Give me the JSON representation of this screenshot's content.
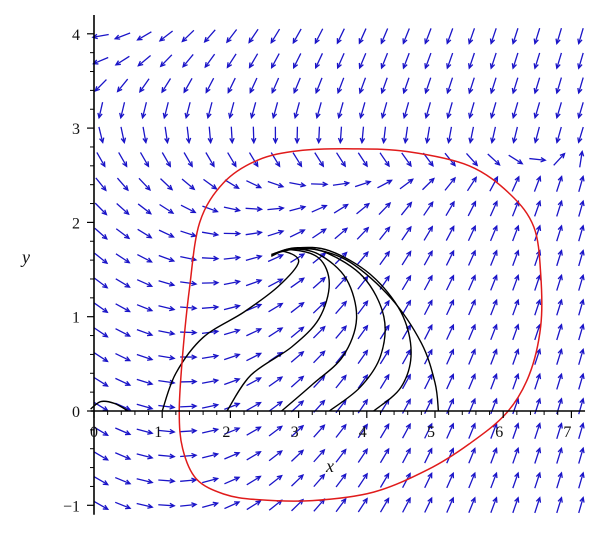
{
  "chart_data": {
    "type": "phase-portrait",
    "title": "",
    "xlabel": "x",
    "ylabel": "y",
    "xlim": [
      -0.05,
      7.2
    ],
    "ylim": [
      -1.1,
      4.2
    ],
    "x_ticks": [
      "0",
      "1",
      "2",
      "3",
      "4",
      "5",
      "6",
      "7"
    ],
    "x_tick_values": [
      0,
      1,
      2,
      3,
      4,
      5,
      6,
      7
    ],
    "y_ticks": [
      "−1",
      "0",
      "1",
      "2",
      "3",
      "4"
    ],
    "y_tick_values": [
      -1,
      0,
      1,
      2,
      3,
      4
    ],
    "grid": false,
    "colors": {
      "arrows": "#1a14c8",
      "trajectories": "#000000",
      "boundary_curve": "#e01b1b",
      "axes": "#000000"
    },
    "vector_field_grid": {
      "x_start": 0.1,
      "x_step": 0.32,
      "x_count": 23,
      "y_start": -1.0,
      "y_step": 0.262,
      "y_count": 20
    },
    "boundary_curve": [
      [
        1.25,
        0.0
      ],
      [
        1.3,
        -0.4
      ],
      [
        1.5,
        -0.72
      ],
      [
        1.9,
        -0.88
      ],
      [
        2.4,
        -0.94
      ],
      [
        3.2,
        -0.95
      ],
      [
        4.1,
        -0.86
      ],
      [
        4.9,
        -0.62
      ],
      [
        5.5,
        -0.35
      ],
      [
        6.05,
        -0.02
      ],
      [
        6.38,
        0.38
      ],
      [
        6.55,
        0.9
      ],
      [
        6.55,
        1.45
      ],
      [
        6.45,
        1.95
      ],
      [
        6.1,
        2.3
      ],
      [
        5.5,
        2.6
      ],
      [
        4.6,
        2.75
      ],
      [
        3.8,
        2.78
      ],
      [
        3.0,
        2.76
      ],
      [
        2.4,
        2.66
      ],
      [
        1.9,
        2.42
      ],
      [
        1.55,
        2.0
      ],
      [
        1.4,
        1.3
      ],
      [
        1.3,
        0.6
      ],
      [
        1.25,
        0.0
      ]
    ],
    "trajectories": [
      [
        [
          1.0,
          0.0
        ],
        [
          1.2,
          0.4
        ],
        [
          1.6,
          0.78
        ],
        [
          2.2,
          1.05
        ],
        [
          2.7,
          1.32
        ],
        [
          3.0,
          1.58
        ],
        [
          2.8,
          1.69
        ],
        [
          2.6,
          1.65
        ]
      ],
      [
        [
          1.95,
          0.0
        ],
        [
          2.3,
          0.38
        ],
        [
          2.9,
          0.68
        ],
        [
          3.3,
          0.98
        ],
        [
          3.45,
          1.35
        ],
        [
          3.3,
          1.62
        ],
        [
          2.9,
          1.71
        ],
        [
          2.6,
          1.66
        ]
      ],
      [
        [
          2.75,
          0.0
        ],
        [
          3.2,
          0.28
        ],
        [
          3.65,
          0.58
        ],
        [
          3.85,
          0.98
        ],
        [
          3.7,
          1.4
        ],
        [
          3.3,
          1.66
        ],
        [
          2.9,
          1.72
        ],
        [
          2.65,
          1.67
        ]
      ],
      [
        [
          3.45,
          0.0
        ],
        [
          3.9,
          0.25
        ],
        [
          4.2,
          0.58
        ],
        [
          4.25,
          1.0
        ],
        [
          3.95,
          1.42
        ],
        [
          3.4,
          1.68
        ],
        [
          2.95,
          1.72
        ],
        [
          2.65,
          1.67
        ]
      ],
      [
        [
          4.1,
          0.0
        ],
        [
          4.5,
          0.25
        ],
        [
          4.65,
          0.62
        ],
        [
          4.5,
          1.05
        ],
        [
          4.05,
          1.45
        ],
        [
          3.45,
          1.7
        ],
        [
          2.95,
          1.73
        ],
        [
          2.65,
          1.67
        ]
      ],
      [
        [
          5.05,
          0.0
        ],
        [
          5.0,
          0.3
        ],
        [
          4.8,
          0.72
        ],
        [
          4.35,
          1.2
        ],
        [
          3.75,
          1.58
        ],
        [
          3.2,
          1.72
        ],
        [
          2.8,
          1.7
        ],
        [
          2.6,
          1.64
        ]
      ],
      [
        [
          -0.05,
          0.02
        ],
        [
          0.1,
          0.1
        ],
        [
          0.3,
          0.08
        ],
        [
          0.5,
          0.0
        ]
      ]
    ]
  }
}
